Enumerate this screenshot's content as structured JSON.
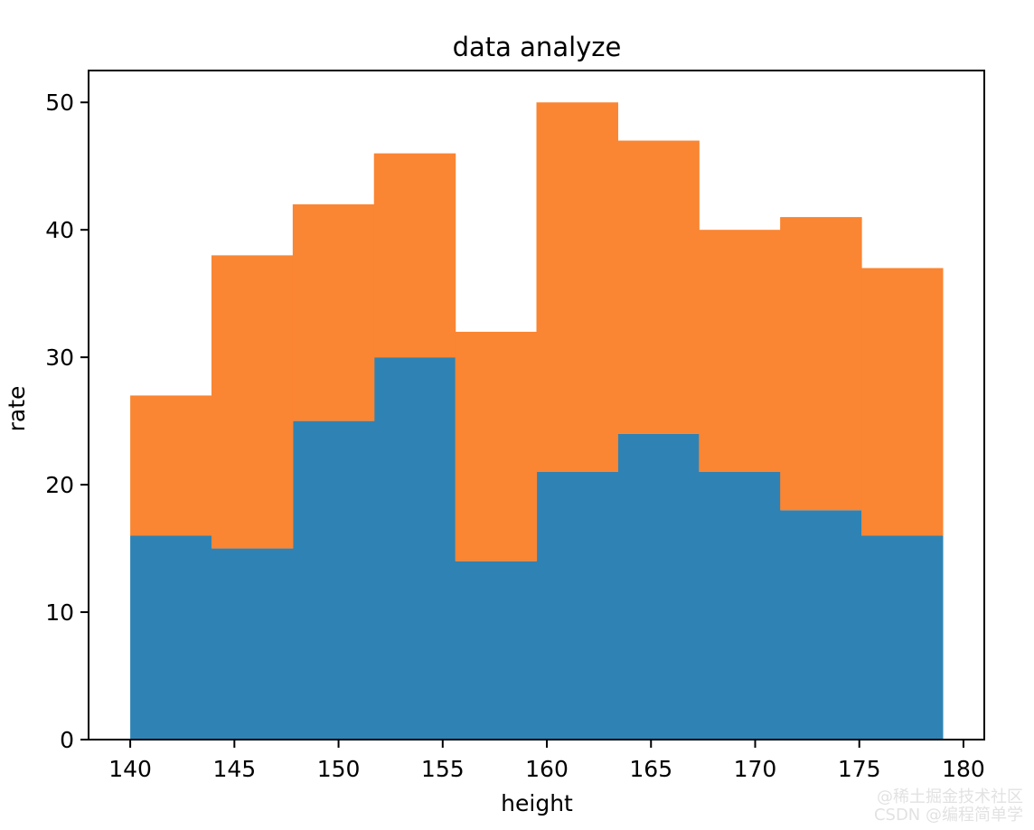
{
  "chart_data": {
    "type": "bar",
    "stacked": true,
    "title": "data analyze",
    "xlabel": "height",
    "ylabel": "rate",
    "bin_edges": [
      140,
      143.9,
      147.8,
      151.7,
      155.6,
      159.5,
      163.4,
      167.3,
      171.2,
      175.1,
      179
    ],
    "series": [
      {
        "values": [
          16,
          15,
          25,
          30,
          14,
          21,
          24,
          21,
          18,
          16
        ],
        "color": "#2e83b4"
      },
      {
        "values": [
          11,
          23,
          17,
          16,
          18,
          29,
          23,
          19,
          23,
          21
        ],
        "color": "#fa8532"
      }
    ],
    "stack_totals": [
      27,
      38,
      42,
      46,
      32,
      50,
      47,
      40,
      41,
      37
    ],
    "xlim": [
      138,
      181
    ],
    "ylim": [
      0,
      52.5
    ],
    "xticks": [
      140,
      145,
      150,
      155,
      160,
      165,
      170,
      175,
      180
    ],
    "yticks": [
      0,
      10,
      20,
      30,
      40,
      50
    ],
    "grid": false,
    "legend": false
  },
  "watermark": {
    "line1": "@稀土掘金技术社区",
    "line2": "CSDN @编程简单学"
  }
}
